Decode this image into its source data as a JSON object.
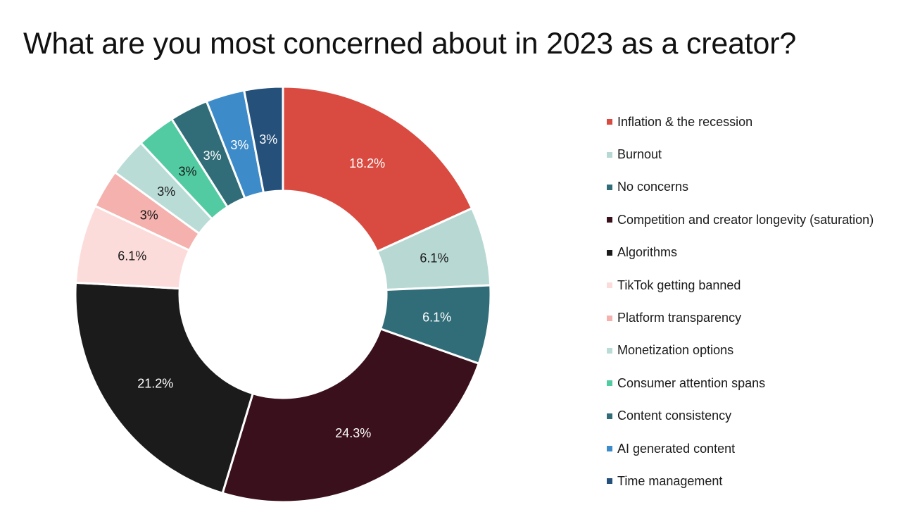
{
  "chart_data": {
    "type": "pie",
    "donut": true,
    "title": "What are you most concerned about in 2023 as a creator?",
    "slices": [
      {
        "label": "Inflation & the recession",
        "value": 18.2,
        "display": "18.2%",
        "color": "#d94b41",
        "text_color": "#ffffff"
      },
      {
        "label": "Burnout",
        "value": 6.1,
        "display": "6.1%",
        "color": "#b8d9d3",
        "text_color": "#1a1a1a"
      },
      {
        "label": "No concerns",
        "value": 6.1,
        "display": "6.1%",
        "color": "#316d78",
        "text_color": "#ffffff"
      },
      {
        "label": "Competition and creator longevity (saturation)",
        "value": 24.3,
        "display": "24.3%",
        "color": "#3a101c",
        "text_color": "#ffffff"
      },
      {
        "label": "Algorithms",
        "value": 21.2,
        "display": "21.2%",
        "color": "#1b1b1b",
        "text_color": "#ffffff"
      },
      {
        "label": "TikTok getting banned",
        "value": 6.1,
        "display": "6.1%",
        "color": "#fcdcdb",
        "text_color": "#1a1a1a"
      },
      {
        "label": "Platform transparency",
        "value": 3,
        "display": "3%",
        "color": "#f4b1ad",
        "text_color": "#1a1a1a"
      },
      {
        "label": "Monetization options",
        "value": 3,
        "display": "3%",
        "color": "#b9dcd7",
        "text_color": "#1a1a1a"
      },
      {
        "label": "Consumer attention spans",
        "value": 3,
        "display": "3%",
        "color": "#52cba3",
        "text_color": "#1a1a1a"
      },
      {
        "label": "Content consistency",
        "value": 3,
        "display": "3%",
        "color": "#316d78",
        "text_color": "#ffffff"
      },
      {
        "label": "AI generated content",
        "value": 3,
        "display": "3%",
        "color": "#3d8bc9",
        "text_color": "#ffffff"
      },
      {
        "label": "Time management",
        "value": 3,
        "display": "3%",
        "color": "#24507a",
        "text_color": "#ffffff"
      }
    ],
    "start_angle_deg": 0,
    "direction": "clockwise",
    "legend_position": "right"
  }
}
